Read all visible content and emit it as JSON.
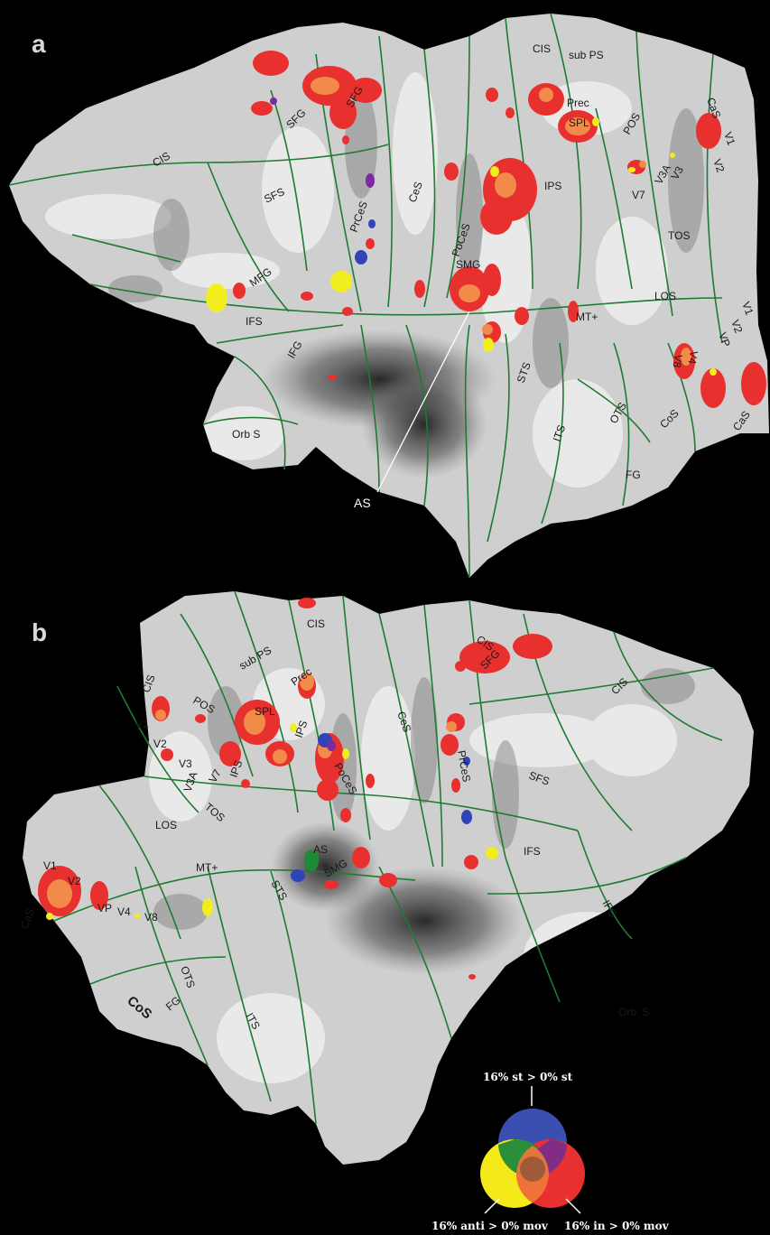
{
  "panels": [
    {
      "letter": "a",
      "regions": [
        "CIS",
        "sub PS",
        "Prec",
        "SPL",
        "POS",
        "CaS",
        "V1",
        "V2",
        "V3",
        "V3A",
        "V7",
        "TOS",
        "LOS",
        "MT+",
        "V1",
        "V2",
        "VP",
        "V4",
        "V8",
        "SFG",
        "SFG",
        "CIS",
        "SFS",
        "PrCeS",
        "CeS",
        "IPS",
        "PoCeS",
        "SMG",
        "MFG",
        "IFS",
        "IFG",
        "STS",
        "ITS",
        "OTS",
        "CoS",
        "FG",
        "CaS",
        "Orb S"
      ],
      "pointer_label": "AS"
    },
    {
      "letter": "b",
      "regions": [
        "CIS",
        "CIS",
        "SFG",
        "CIS",
        "sub PS",
        "Prec",
        "SPL",
        "POS",
        "CIS",
        "V1",
        "V2",
        "V3",
        "V3A",
        "V7",
        "IPS",
        "IPS",
        "PoCeS",
        "CeS",
        "PrCeS",
        "SFS",
        "TOS",
        "LOS",
        "MT+",
        "AS",
        "SMG",
        "STS",
        "IFS",
        "IFG",
        "V1",
        "V2",
        "VP",
        "V4",
        "V8",
        "CaS",
        "OTS",
        "CoS",
        "FG",
        "ITS",
        "Orb. S"
      ]
    }
  ],
  "legend": {
    "top": "16% st > 0% st",
    "left": "16% anti > 0% mov",
    "right": "16% in > 0% mov",
    "colors": {
      "blue": "#3a4fb0",
      "yellow": "#f4ea1a",
      "red": "#e83030",
      "green": "#1f8a3a",
      "purple": "#7a2e8a",
      "orange": "#f07a3a",
      "center": "#a05a3a"
    }
  },
  "colors": {
    "background": "#000000",
    "cortex": "#d8d8d8",
    "sulcus_line": "#1f7a32",
    "activation_red": "#e8302e",
    "activation_orange": "#f28a4a",
    "activation_yellow": "#f2ee1e",
    "activation_blue": "#2e44b8",
    "activation_purple": "#7a2aa0",
    "activation_green": "#1e8a38"
  }
}
